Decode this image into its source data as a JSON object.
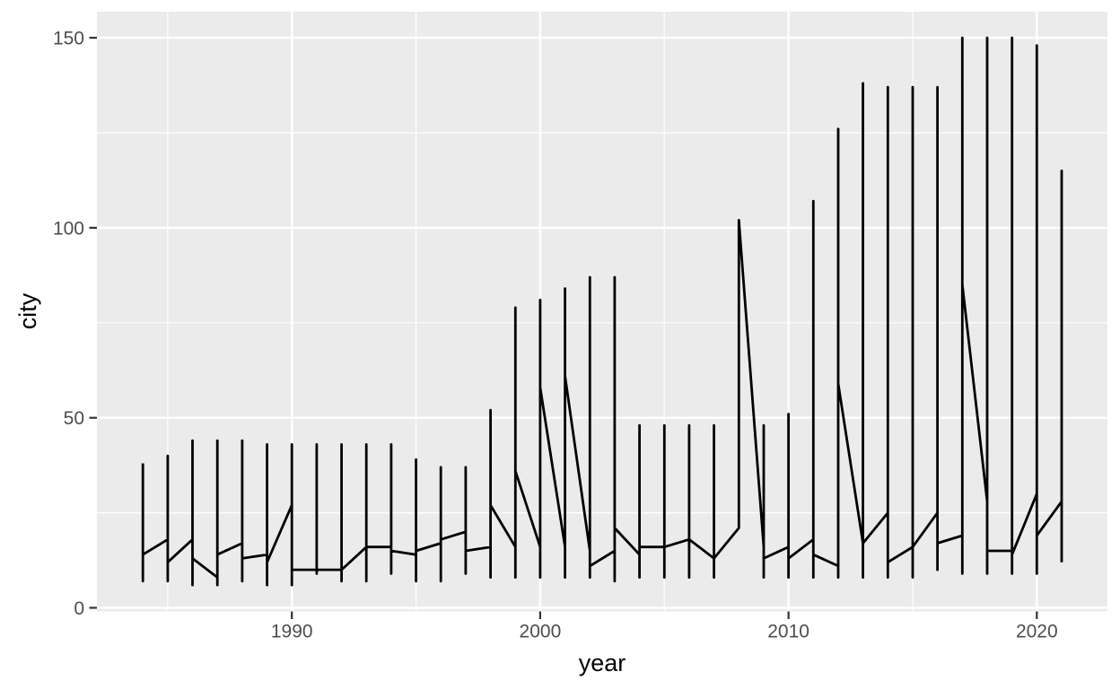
{
  "chart_data": {
    "type": "line",
    "title": "",
    "xlabel": "year",
    "ylabel": "city",
    "x_axis": {
      "major_ticks": [
        1990,
        2000,
        2010,
        2020
      ],
      "tick_labels": [
        "1990",
        "2000",
        "2010",
        "2020"
      ],
      "minor_gridlines": [
        1985,
        1995,
        2005,
        2015
      ],
      "range_shown": [
        1982,
        2023
      ]
    },
    "y_axis": {
      "major_ticks": [
        0,
        50,
        100,
        150
      ],
      "tick_labels": [
        "0",
        "50",
        "100",
        "150"
      ],
      "minor_gridlines": [
        25,
        75,
        125
      ],
      "range_shown": [
        -1,
        157
      ]
    },
    "grid": true,
    "legend": "none",
    "series_name": "city",
    "description": "Single black line; one vertical spike per year spanning min..max, with low-level connector segments between years (enter = value where line arrives at that year, exit = value where line leaves toward next year).",
    "per_year": [
      {
        "year": 1984,
        "min": 7,
        "max": 38,
        "enter": null,
        "exit": 14
      },
      {
        "year": 1985,
        "min": 7,
        "max": 40,
        "enter": 18,
        "exit": 12
      },
      {
        "year": 1986,
        "min": 6,
        "max": 44,
        "enter": 18,
        "exit": 13
      },
      {
        "year": 1987,
        "min": 6,
        "max": 44,
        "enter": 8,
        "exit": 14
      },
      {
        "year": 1988,
        "min": 7,
        "max": 44,
        "enter": 17,
        "exit": 13
      },
      {
        "year": 1989,
        "min": 6,
        "max": 43,
        "enter": 14,
        "exit": 12
      },
      {
        "year": 1990,
        "min": 6,
        "max": 43,
        "enter": 27,
        "exit": 10
      },
      {
        "year": 1991,
        "min": 9,
        "max": 43,
        "enter": 10,
        "exit": 10
      },
      {
        "year": 1992,
        "min": 7,
        "max": 43,
        "enter": 10,
        "exit": 10
      },
      {
        "year": 1993,
        "min": 7,
        "max": 43,
        "enter": 16,
        "exit": 16
      },
      {
        "year": 1994,
        "min": 9,
        "max": 43,
        "enter": 16,
        "exit": 15
      },
      {
        "year": 1995,
        "min": 7,
        "max": 39,
        "enter": 14,
        "exit": 15
      },
      {
        "year": 1996,
        "min": 7,
        "max": 37,
        "enter": 17,
        "exit": 18
      },
      {
        "year": 1997,
        "min": 9,
        "max": 37,
        "enter": 20,
        "exit": 15
      },
      {
        "year": 1998,
        "min": 8,
        "max": 52,
        "enter": 16,
        "exit": 27
      },
      {
        "year": 1999,
        "min": 8,
        "max": 79,
        "enter": 16,
        "exit": 36
      },
      {
        "year": 2000,
        "min": 8,
        "max": 81,
        "enter": 16,
        "exit": 58
      },
      {
        "year": 2001,
        "min": 8,
        "max": 84,
        "enter": 16,
        "exit": 61
      },
      {
        "year": 2002,
        "min": 8,
        "max": 87,
        "enter": 15,
        "exit": 11
      },
      {
        "year": 2003,
        "min": 7,
        "max": 87,
        "enter": 15,
        "exit": 21
      },
      {
        "year": 2004,
        "min": 8,
        "max": 48,
        "enter": 14,
        "exit": 16
      },
      {
        "year": 2005,
        "min": 8,
        "max": 48,
        "enter": 16,
        "exit": 16
      },
      {
        "year": 2006,
        "min": 8,
        "max": 48,
        "enter": 18,
        "exit": 18
      },
      {
        "year": 2007,
        "min": 8,
        "max": 48,
        "enter": 13,
        "exit": 13
      },
      {
        "year": 2008,
        "min": 21,
        "max": 102,
        "enter": 21,
        "exit": 102
      },
      {
        "year": 2009,
        "min": 8,
        "max": 48,
        "enter": 16,
        "exit": 13
      },
      {
        "year": 2010,
        "min": 8,
        "max": 51,
        "enter": 16,
        "exit": 13
      },
      {
        "year": 2011,
        "min": 8,
        "max": 107,
        "enter": 18,
        "exit": 14
      },
      {
        "year": 2012,
        "min": 8,
        "max": 126,
        "enter": 11,
        "exit": 59
      },
      {
        "year": 2013,
        "min": 8,
        "max": 138,
        "enter": 17,
        "exit": 17
      },
      {
        "year": 2014,
        "min": 8,
        "max": 137,
        "enter": 25,
        "exit": 12
      },
      {
        "year": 2015,
        "min": 8,
        "max": 137,
        "enter": 16,
        "exit": 16
      },
      {
        "year": 2016,
        "min": 10,
        "max": 137,
        "enter": 25,
        "exit": 17
      },
      {
        "year": 2017,
        "min": 9,
        "max": 150,
        "enter": 19,
        "exit": 85
      },
      {
        "year": 2018,
        "min": 9,
        "max": 150,
        "enter": 28,
        "exit": 15
      },
      {
        "year": 2019,
        "min": 9,
        "max": 150,
        "enter": 15,
        "exit": 14
      },
      {
        "year": 2020,
        "min": 9,
        "max": 148,
        "enter": 30,
        "exit": 19
      },
      {
        "year": 2021,
        "min": 12,
        "max": 115,
        "enter": 28,
        "exit": null
      }
    ],
    "colors": {
      "figure_background": "#FFFFFF",
      "panel_background": "#EBEBEB",
      "gridline": "#FFFFFF",
      "data_line": "#000000",
      "tick_label": "#4D4D4D",
      "axis_title": "#000000",
      "tick_mark": "#333333"
    }
  }
}
